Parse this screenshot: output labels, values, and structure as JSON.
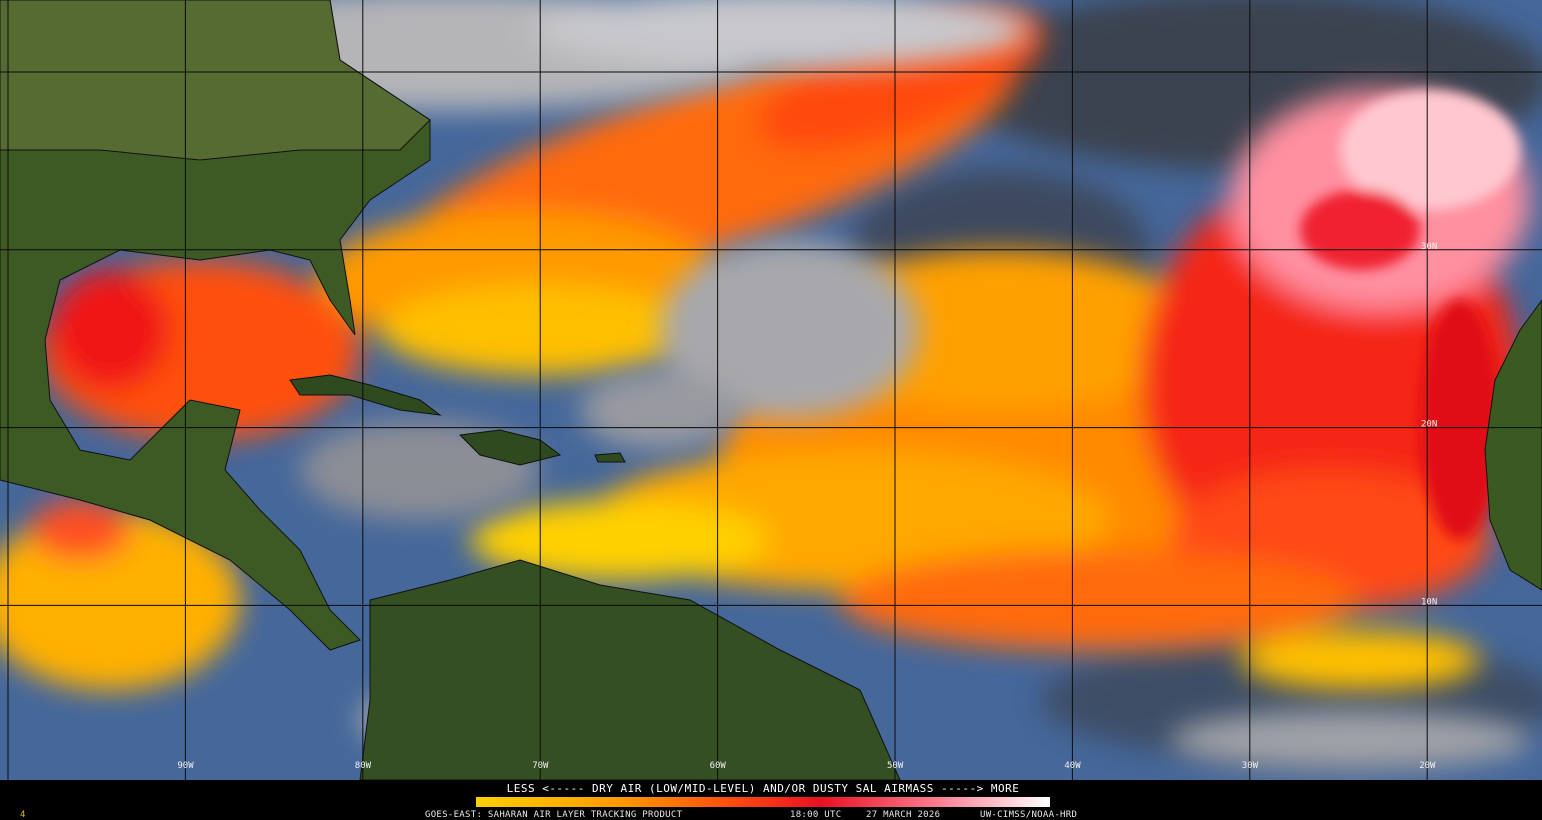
{
  "map": {
    "lat_labels": [
      "30N",
      "20N",
      "10N"
    ],
    "lon_labels": [
      "90W",
      "80W",
      "70W",
      "60W",
      "50W",
      "40W",
      "30W",
      "20W"
    ]
  },
  "legend": {
    "text": "LESS <----- DRY AIR (LOW/MID-LEVEL) AND/OR DUSTY SAL AIRMASS -----> MORE"
  },
  "footer": {
    "product": "GOES-EAST: SAHARAN AIR LAYER TRACKING PRODUCT",
    "time": "18:00 UTC",
    "date": "27 MARCH 2026",
    "credit": "UW-CIMSS/NOAA-HRD"
  },
  "corner_label": "4"
}
